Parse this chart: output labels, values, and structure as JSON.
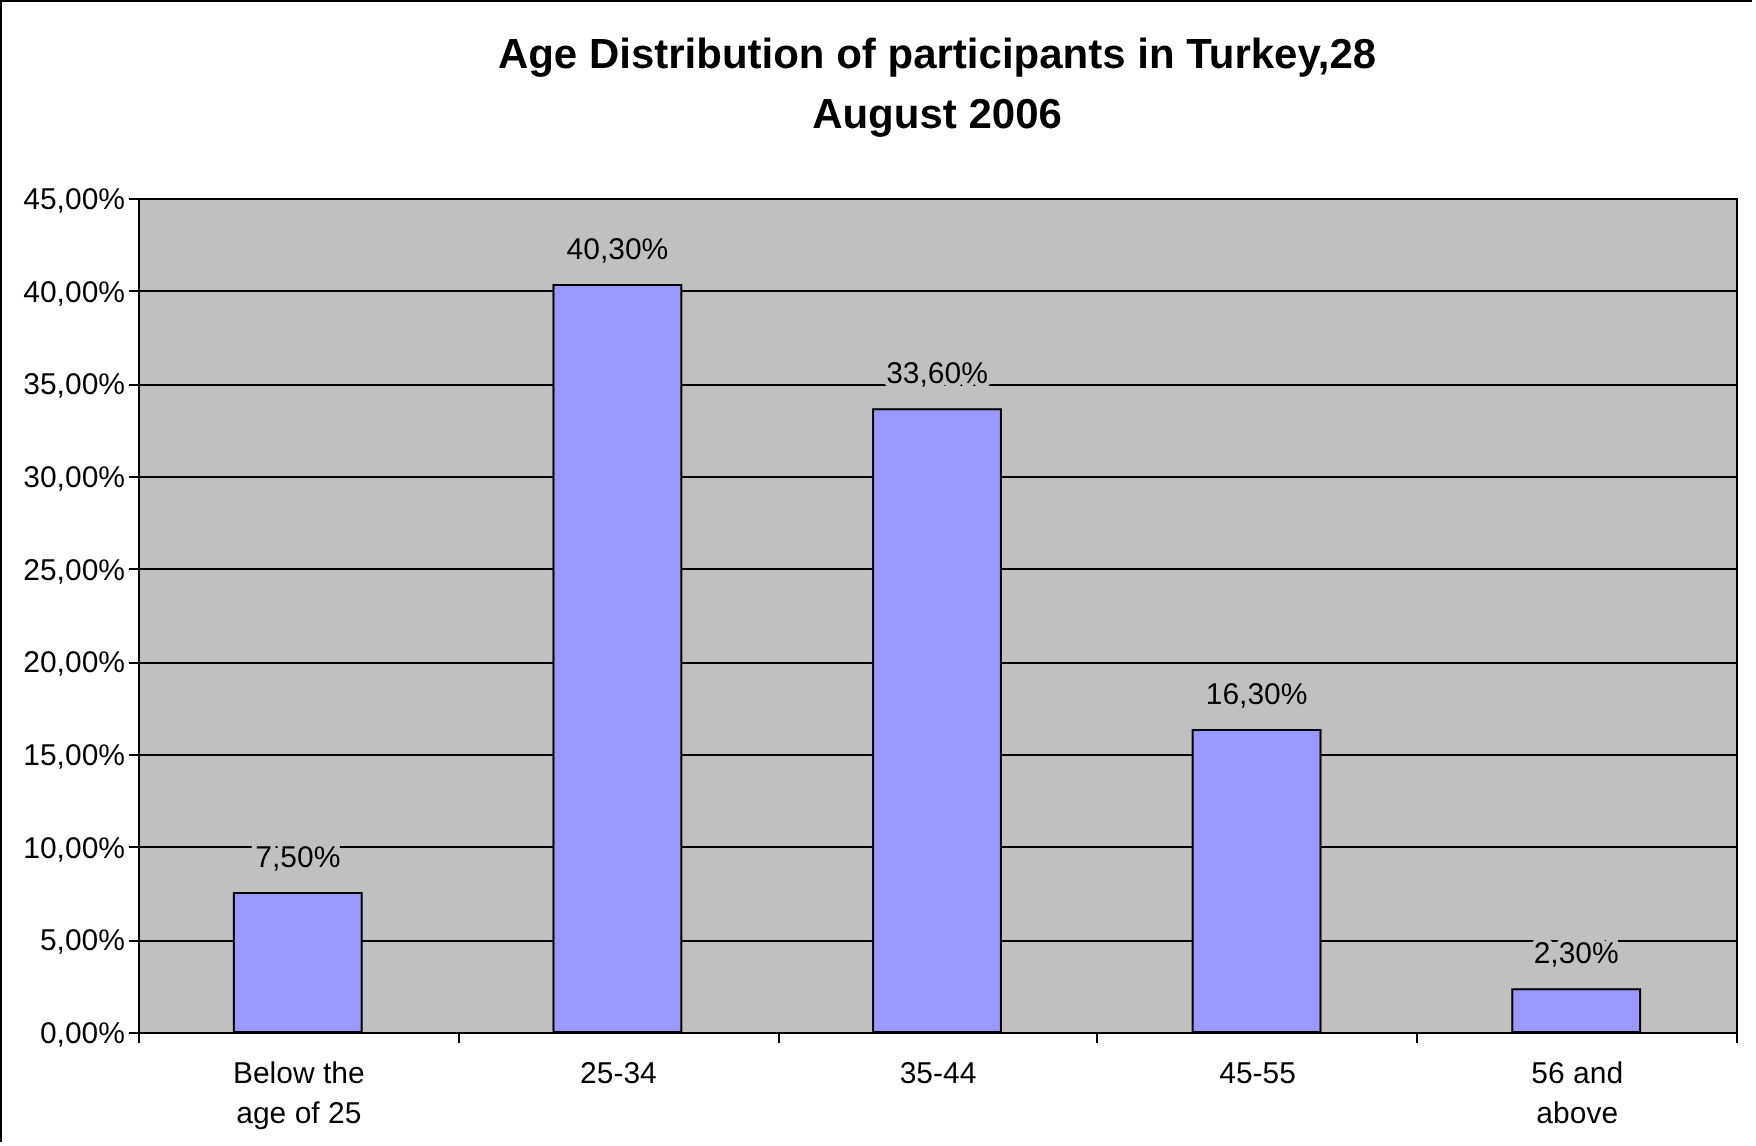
{
  "chart_data": {
    "type": "bar",
    "title": "Age Distribution of participants in Turkey,28 August 2006",
    "categories": [
      "Below the age of 25",
      "25-34",
      "35-44",
      "45-55",
      "56 and above"
    ],
    "values": [
      7.5,
      40.3,
      33.6,
      16.3,
      2.3
    ],
    "value_labels": [
      "7,50%",
      "40,30%",
      "33,60%",
      "16,30%",
      "2,30%"
    ],
    "color": "#9999ff",
    "ylim": [
      0,
      45
    ],
    "yticks": [
      {
        "value": 0,
        "label": "0,00%"
      },
      {
        "value": 5,
        "label": "5,00%"
      },
      {
        "value": 10,
        "label": "10,00%"
      },
      {
        "value": 15,
        "label": "15,00%"
      },
      {
        "value": 20,
        "label": "20,00%"
      },
      {
        "value": 25,
        "label": "25,00%"
      },
      {
        "value": 30,
        "label": "30,00%"
      },
      {
        "value": 35,
        "label": "35,00%"
      },
      {
        "value": 40,
        "label": "40,00%"
      },
      {
        "value": 45,
        "label": "45,00%"
      }
    ],
    "grid": "y"
  }
}
